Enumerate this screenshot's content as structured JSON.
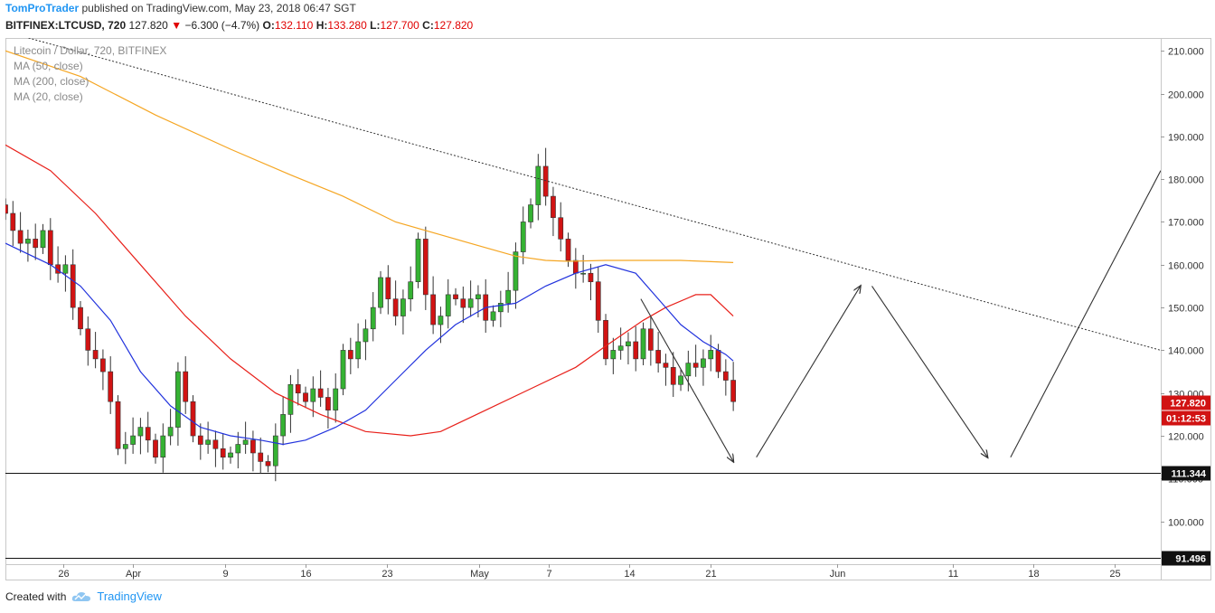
{
  "header": {
    "author": "TomProTrader",
    "published_text": "published on TradingView.com, May 23, 2018 06:47 SGT"
  },
  "quote": {
    "symbol": "BITFINEX:LTCUSD, 720",
    "last": "127.820",
    "change_arrow": "▼",
    "change": "−6.300 (−4.7%)",
    "o_label": "O:",
    "o": "132.110",
    "h_label": "H:",
    "h": "133.280",
    "l_label": "L:",
    "l": "127.700",
    "c_label": "C:",
    "c": "127.820"
  },
  "legend": {
    "title": "Litecoin / Dollar, 720, BITFINEX",
    "ma50": "MA (50, close)",
    "ma200": "MA (200, close)",
    "ma20": "MA (20, close)"
  },
  "footer": {
    "created_with": "Created with",
    "brand": "TradingView",
    "logo_icon": "tradingview-cloud-icon"
  },
  "colors": {
    "up": "#35b233",
    "down": "#d11313",
    "ma200": "#f5a623",
    "ma50": "#e8201a",
    "ma20": "#2233dd",
    "badge_price": "#d11313",
    "trendline": "#333333"
  },
  "chart_data": {
    "type": "candlestick",
    "symbol": "LTCUSD",
    "ylim": [
      90,
      213
    ],
    "xlim": [
      "2018-03-21",
      "2018-06-29"
    ],
    "y_ticks": [
      100,
      110,
      120,
      130,
      140,
      150,
      160,
      170,
      180,
      190,
      200,
      210
    ],
    "y_tick_labels": [
      "100.000",
      "110.000",
      "120.000",
      "130.000",
      "140.000",
      "150.000",
      "160.000",
      "170.000",
      "180.000",
      "190.000",
      "200.000",
      "210.000"
    ],
    "x_ticks": [
      {
        "date": "2018-03-26",
        "label": "26"
      },
      {
        "date": "2018-04-01",
        "label": "Apr"
      },
      {
        "date": "2018-04-09",
        "label": "9"
      },
      {
        "date": "2018-04-16",
        "label": "16"
      },
      {
        "date": "2018-04-23",
        "label": "23"
      },
      {
        "date": "2018-05-01",
        "label": "May"
      },
      {
        "date": "2018-05-07",
        "label": "7"
      },
      {
        "date": "2018-05-14",
        "label": "14"
      },
      {
        "date": "2018-05-21",
        "label": "21"
      },
      {
        "date": "2018-06-01",
        "label": "Jun"
      },
      {
        "date": "2018-06-11",
        "label": "11"
      },
      {
        "date": "2018-06-18",
        "label": "18"
      },
      {
        "date": "2018-06-25",
        "label": "25"
      }
    ],
    "candles_close": [
      172,
      168,
      165,
      166,
      164,
      168,
      160,
      158,
      160,
      150,
      145,
      140,
      138,
      135,
      128,
      117,
      118,
      120,
      122,
      119,
      115,
      120,
      122,
      135,
      128,
      120,
      118,
      119,
      117,
      115,
      116,
      118,
      119,
      116,
      114,
      113,
      120,
      125,
      132,
      130,
      128,
      131,
      129,
      126,
      131,
      140,
      138,
      142,
      145,
      150,
      157,
      152,
      148,
      152,
      156,
      166,
      153,
      146,
      148,
      153,
      152,
      150,
      152,
      153,
      147,
      149,
      151,
      154,
      163,
      170,
      174,
      183,
      176,
      171,
      166,
      161,
      158,
      158,
      156,
      147,
      138,
      140,
      141,
      142,
      138,
      145,
      140,
      137,
      136,
      132,
      134,
      137,
      136,
      138,
      140,
      135,
      133,
      128
    ],
    "series": [
      {
        "name": "MA (200, close)",
        "x_start": "2018-03-21",
        "x_end": "2018-05-23",
        "y_start": 210,
        "y_end": 160.5
      },
      {
        "name": "MA (50, close)",
        "x_start": "2018-03-21",
        "x_end": "2018-05-23",
        "y_start": 188,
        "y_end": 148
      },
      {
        "name": "MA (20, close)",
        "x_start": "2018-03-21",
        "x_end": "2018-05-23",
        "y_start": 165,
        "y_end": 137.5
      }
    ],
    "horizontal_lines": [
      {
        "value": 111.344,
        "label": "111.344"
      },
      {
        "value": 91.496,
        "label": "91.496"
      }
    ],
    "price_badges": [
      {
        "label": "127.820",
        "value": 127.82
      },
      {
        "label": "01:12:53",
        "value": 124.3
      }
    ],
    "annotations": [
      {
        "type": "dotted_trendline",
        "from": {
          "date": "2018-03-23",
          "value": 213
        },
        "to": {
          "date": "2018-06-29",
          "value": 140
        }
      },
      {
        "type": "arrow",
        "from": {
          "date": "2018-05-15",
          "value": 152
        },
        "to": {
          "date": "2018-05-23",
          "value": 114
        }
      },
      {
        "type": "arrow",
        "from": {
          "date": "2018-05-25",
          "value": 115
        },
        "to": {
          "date": "2018-06-03",
          "value": 155
        }
      },
      {
        "type": "arrow",
        "from": {
          "date": "2018-06-04",
          "value": 155
        },
        "to": {
          "date": "2018-06-14",
          "value": 115
        }
      },
      {
        "type": "line",
        "from": {
          "date": "2018-06-16",
          "value": 115
        },
        "to": {
          "date": "2018-06-29",
          "value": 182
        }
      }
    ]
  }
}
